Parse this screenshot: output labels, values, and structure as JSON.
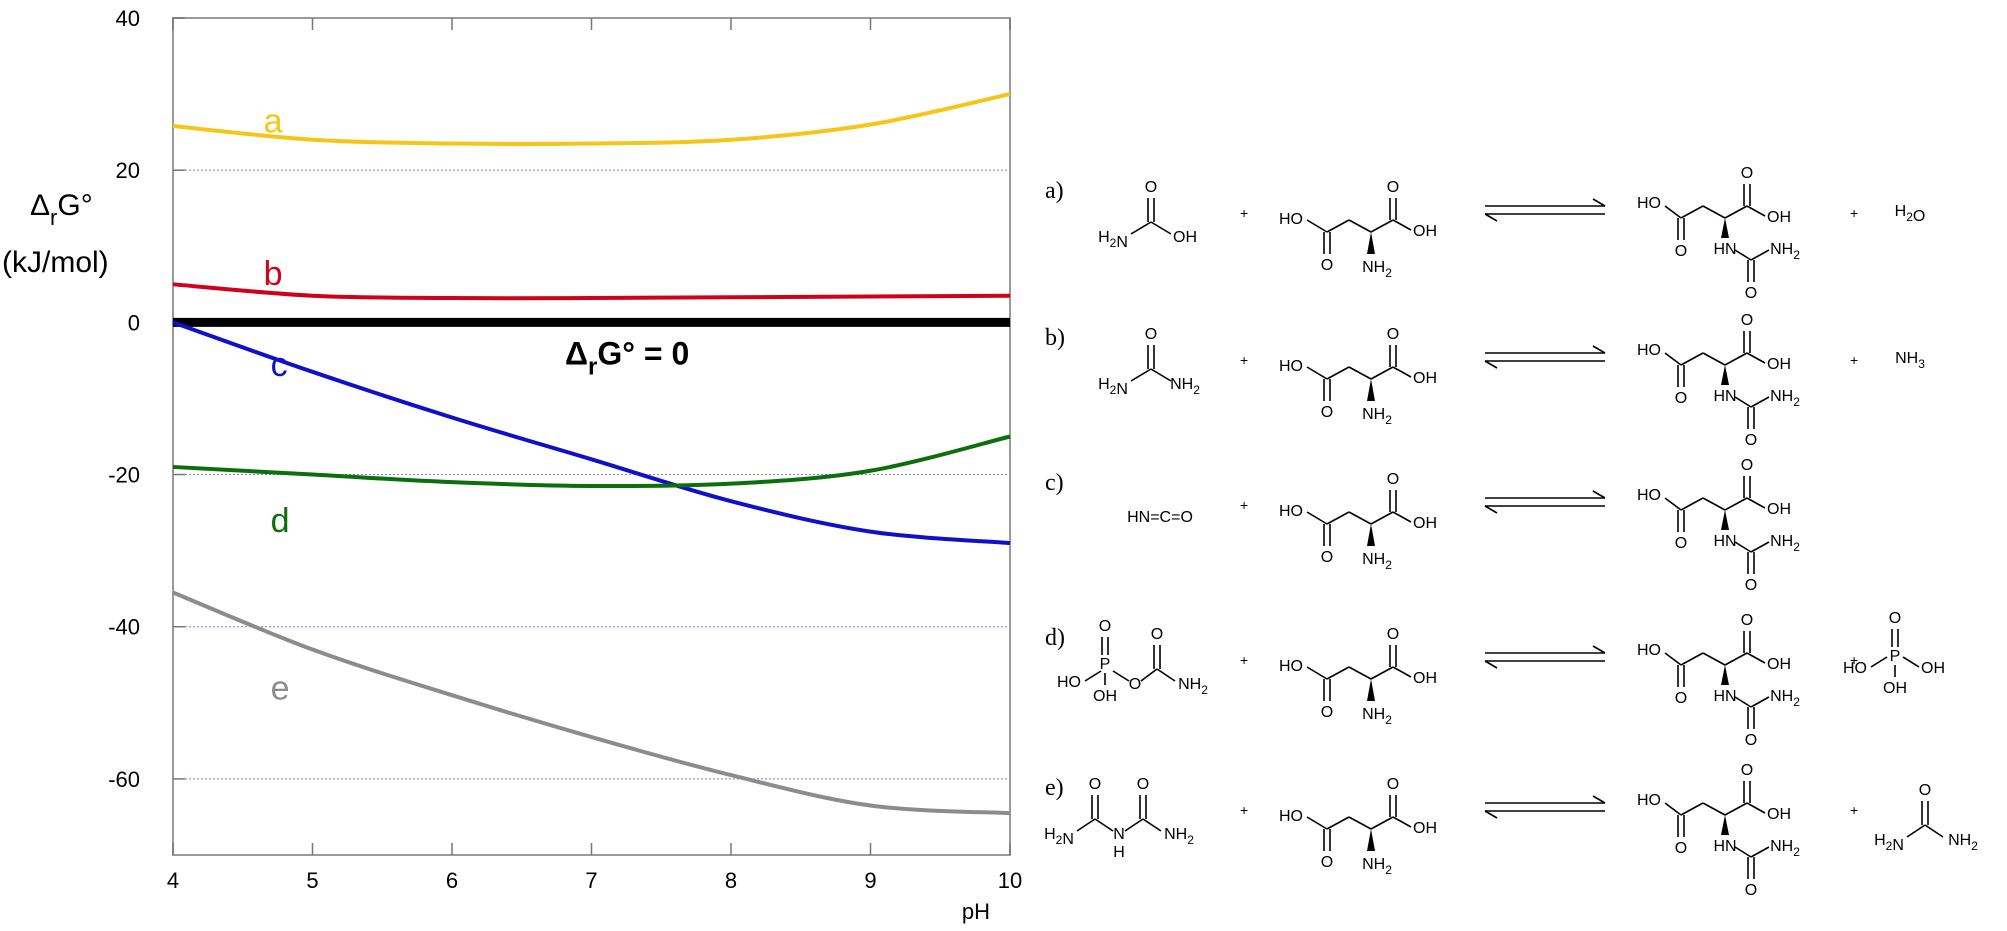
{
  "chart_data": {
    "type": "line",
    "xlabel": "pH",
    "ylabel_line1": "ΔrG°",
    "ylabel_line2": "(kJ/mol)",
    "xlim": [
      4,
      10
    ],
    "ylim": [
      -70,
      40
    ],
    "xticks": [
      4,
      5,
      6,
      7,
      8,
      9,
      10
    ],
    "yticks": [
      40,
      20,
      0,
      -20,
      -40,
      -60
    ],
    "grid": "horizontal dotted",
    "zero_line_label": "ΔrG° = 0",
    "series": [
      {
        "name": "a",
        "color": "#f5c518",
        "x": [
          4,
          5,
          6,
          7,
          8,
          9,
          10
        ],
        "y": [
          25.8,
          24.0,
          23.5,
          23.5,
          24.0,
          26.0,
          30.0
        ]
      },
      {
        "name": "b",
        "color": "#d0021b",
        "x": [
          4,
          5,
          6,
          7,
          8,
          9,
          10
        ],
        "y": [
          5.0,
          3.5,
          3.2,
          3.2,
          3.3,
          3.4,
          3.5
        ]
      },
      {
        "name": "c",
        "color": "#1010c8",
        "x": [
          4,
          5,
          6,
          7,
          8,
          9,
          10
        ],
        "y": [
          0.0,
          -6.5,
          -12.5,
          -18.0,
          -23.5,
          -27.5,
          -29.0
        ]
      },
      {
        "name": "d",
        "color": "#0c6e0c",
        "x": [
          4,
          5,
          6,
          7,
          8,
          9,
          10
        ],
        "y": [
          -19.0,
          -20.0,
          -21.0,
          -21.5,
          -21.2,
          -19.5,
          -15.0
        ]
      },
      {
        "name": "e",
        "color": "#8c8c8c",
        "x": [
          4,
          5,
          6,
          7,
          8,
          9,
          10
        ],
        "y": [
          -35.5,
          -43.0,
          -49.0,
          -54.5,
          -59.5,
          -63.5,
          -64.5
        ]
      }
    ]
  },
  "reactions": [
    {
      "tag": "a)",
      "reactant": "H2N-C(=O)-OH",
      "byproduct": "H2O"
    },
    {
      "tag": "b)",
      "reactant": "H2N-C(=O)-NH2",
      "byproduct": "NH3"
    },
    {
      "tag": "c)",
      "reactant": "HN=C=O",
      "byproduct": ""
    },
    {
      "tag": "d)",
      "reactant": "HO-P(=O)(OH)-O-C(=O)-NH2",
      "byproduct": "H3PO4"
    },
    {
      "tag": "e)",
      "reactant": "H2N-C(=O)-NH-C(=O)-NH2",
      "byproduct": "H2N-C(=O)-NH2"
    }
  ]
}
